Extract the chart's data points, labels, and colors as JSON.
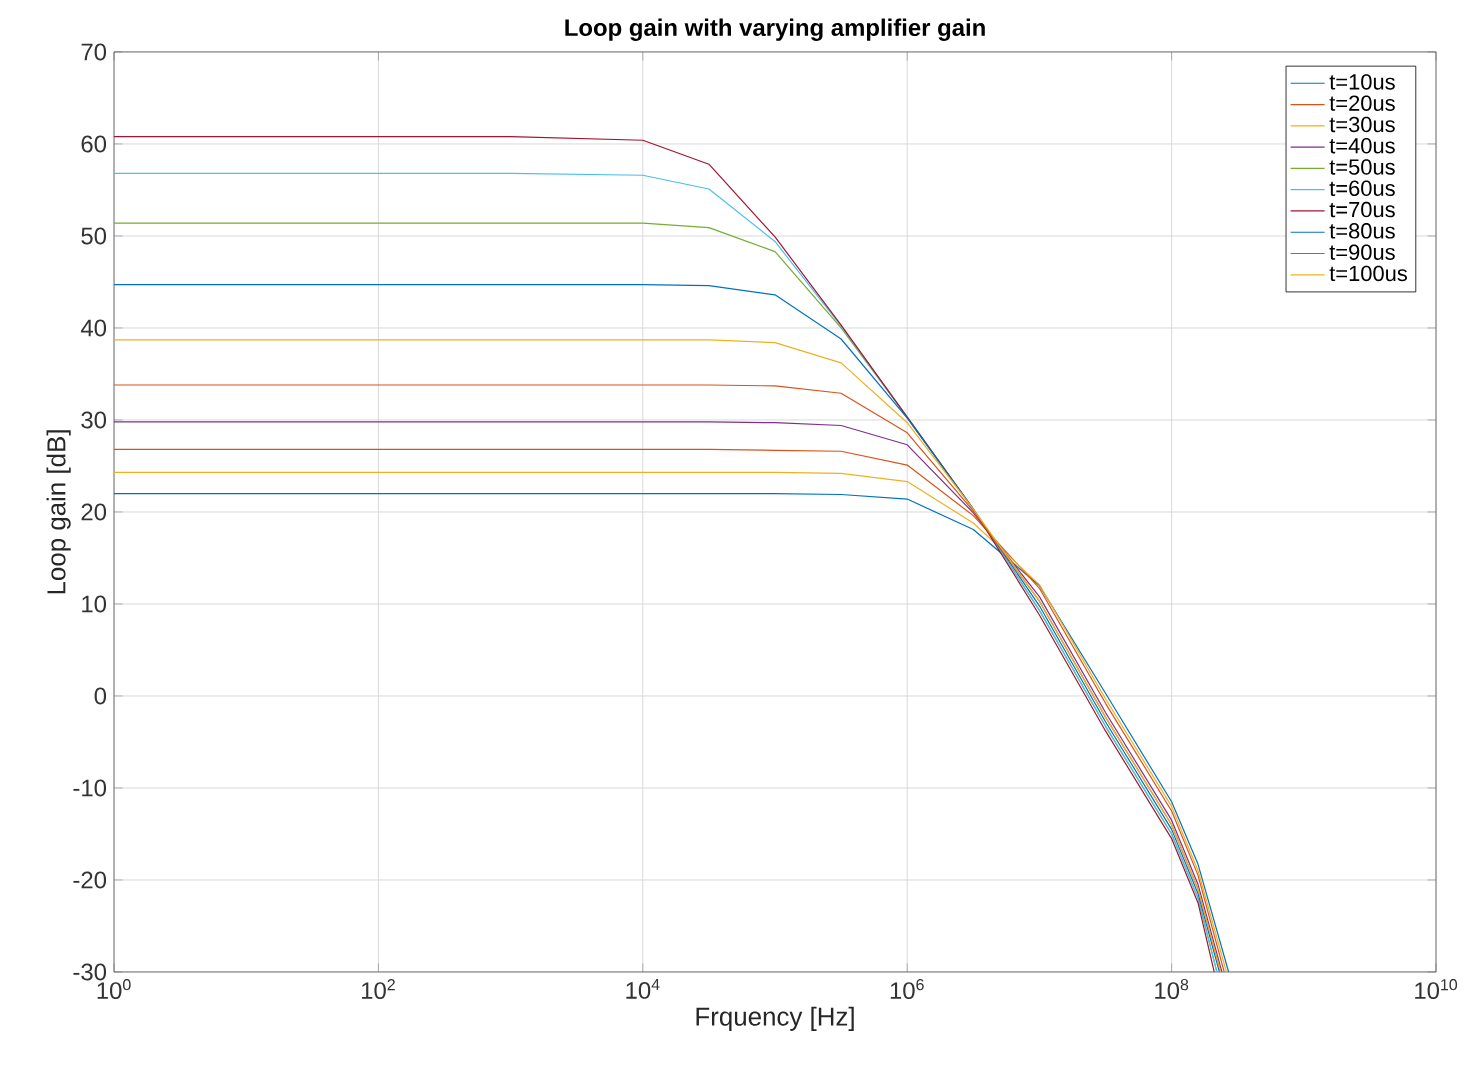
{
  "chart_data": {
    "type": "line",
    "title": "Loop gain with varying amplifier gain",
    "xlabel": "Frquency [Hz]",
    "ylabel": "Loop gain [dB]",
    "log": "x",
    "grid": true,
    "legend": "top right",
    "marker": "none",
    "line_style": "solid",
    "xlim": [
      1,
      10000000000
    ],
    "ylim": [
      -30,
      70
    ],
    "xticks": [
      {
        "value": 1,
        "label": "10$^{0}$"
      },
      {
        "value": 100,
        "label": "10$^{2}$"
      },
      {
        "value": 10000,
        "label": "10$^{4}$"
      },
      {
        "value": 1000000,
        "label": "10$^{6}$"
      },
      {
        "value": 100000000,
        "label": "10$^{8}$"
      },
      {
        "value": 10000000000,
        "label": "10$^{10}$"
      }
    ],
    "yticks": [
      -30,
      -20,
      -10,
      0,
      10,
      20,
      30,
      40,
      50,
      60,
      70
    ],
    "series": [
      {
        "name": "t=10us",
        "color": "#0072bd",
        "x": [
          1,
          1000,
          10000,
          31623,
          100000,
          316228,
          1000000,
          3162278,
          10000000,
          31622777,
          100000000,
          158489319,
          270000000
        ],
        "values": [
          22,
          22,
          22,
          22,
          22,
          21.9,
          21.4,
          18.1,
          12.0,
          0.3,
          -11.5,
          -18.3,
          -30
        ]
      },
      {
        "name": "t=20us",
        "color": "#d95319",
        "x": [
          1,
          1000,
          10000,
          31623,
          100000,
          316228,
          1000000,
          3162278,
          10000000,
          31622777,
          100000000,
          158489319,
          250000000
        ],
        "values": [
          26.8,
          26.8,
          26.8,
          26.8,
          26.7,
          26.6,
          25.1,
          19.6,
          11.7,
          -0.8,
          -12.5,
          -19.5,
          -30
        ]
      },
      {
        "name": "t=30us",
        "color": "#edb120",
        "x": [
          1,
          1000,
          10000,
          31623,
          100000,
          316228,
          1000000,
          3162278,
          10000000,
          31622777,
          100000000,
          158489319,
          260000000
        ],
        "values": [
          24.3,
          24.3,
          24.3,
          24.3,
          24.3,
          24.2,
          23.3,
          18.8,
          12.1,
          -0.3,
          -12,
          -19,
          -30
        ]
      },
      {
        "name": "t=40us",
        "color": "#7e2f8e",
        "x": [
          1,
          1000,
          10000,
          31623,
          100000,
          316228,
          1000000,
          3162278,
          10000000,
          31622777,
          100000000,
          158489319,
          240000000
        ],
        "values": [
          29.8,
          29.8,
          29.8,
          29.8,
          29.7,
          29.4,
          27.3,
          19.9,
          10.8,
          -1.8,
          -13.5,
          -20.5,
          -30
        ]
      },
      {
        "name": "t=50us",
        "color": "#77ac30",
        "x": [
          1,
          1000,
          10000,
          31623,
          100000,
          316228,
          1000000,
          3162278,
          10000000,
          31622777,
          100000000,
          158489319,
          220000000
        ],
        "values": [
          51.4,
          51.4,
          51.4,
          50.9,
          48.3,
          40.0,
          30.3,
          20.3,
          9.3,
          -3.3,
          -15,
          -22,
          -30
        ]
      },
      {
        "name": "t=60us",
        "color": "#4dbeee",
        "x": [
          1,
          1000,
          10000,
          31623,
          100000,
          316228,
          1000000,
          3162278,
          10000000,
          31622777,
          100000000,
          158489319,
          220000000
        ],
        "values": [
          56.8,
          56.8,
          56.6,
          55.1,
          49.4,
          40.2,
          30.3,
          20.3,
          9.3,
          -3.3,
          -15,
          -22,
          -30
        ]
      },
      {
        "name": "t=70us",
        "color": "#a2142f",
        "x": [
          1,
          1000,
          10000,
          31623,
          100000,
          316228,
          1000000,
          3162278,
          10000000,
          31622777,
          100000000,
          158489319,
          210000000
        ],
        "values": [
          60.8,
          60.8,
          60.4,
          57.8,
          49.9,
          40.3,
          30.3,
          20.3,
          8.8,
          -3.8,
          -15.5,
          -22.5,
          -30
        ]
      },
      {
        "name": "t=80us",
        "color": "#0072bd",
        "x": [
          1,
          1000,
          10000,
          31623,
          100000,
          316228,
          1000000,
          3162278,
          10000000,
          31622777,
          100000000,
          158489319,
          230000000
        ],
        "values": [
          44.7,
          44.7,
          44.7,
          44.6,
          43.6,
          38.8,
          30.2,
          20.3,
          9.8,
          -2.8,
          -14.5,
          -21.5,
          -30
        ]
      },
      {
        "name": "t=90us",
        "color": "#d95319",
        "x": [
          1,
          1000,
          10000,
          31623,
          100000,
          316228,
          1000000,
          3162278,
          10000000,
          31622777,
          100000000,
          158489319,
          235000000
        ],
        "values": [
          33.8,
          33.8,
          33.8,
          33.8,
          33.7,
          32.9,
          28.6,
          20.1,
          10.3,
          -2.3,
          -14,
          -21,
          -30
        ]
      },
      {
        "name": "t=100us",
        "color": "#edb120",
        "x": [
          1,
          1000,
          10000,
          31623,
          100000,
          316228,
          1000000,
          3162278,
          10000000,
          31622777,
          100000000,
          158489319,
          235000000
        ],
        "values": [
          38.7,
          38.7,
          38.7,
          38.7,
          38.4,
          36.2,
          29.7,
          20.3,
          10.3,
          -2.3,
          -14,
          -21,
          -30
        ]
      }
    ]
  }
}
